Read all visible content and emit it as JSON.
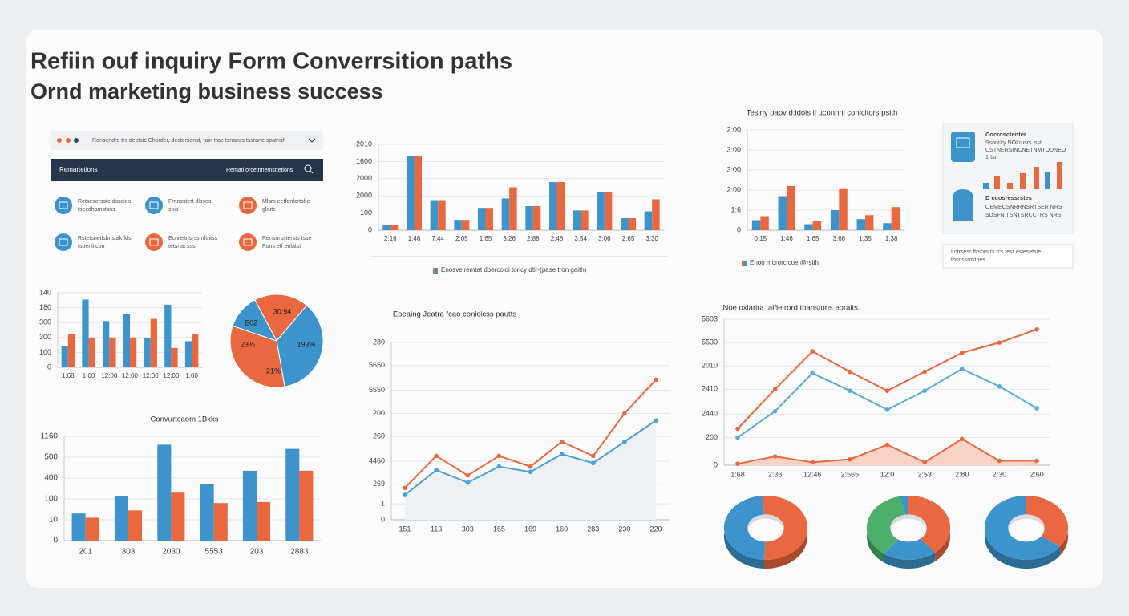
{
  "header": {
    "title": "Refiin ouf inquiry Form Converrsition paths",
    "subtitle": "Ornd marketing business success"
  },
  "panel": {
    "address": "Rensendre trs dectsic Chorder, dectersonid, tain trae tsnanss tssrane spatnsh",
    "nav_title": "Remartetions",
    "nav_search": "Rematl orcetnnemsttetions",
    "items": [
      [
        "Retsesersste dsscies",
        "tsecdhamstsns"
      ],
      [
        "Frnnsstert dlsses",
        "snis"
      ],
      [
        "Mlsrs eetfonfortshe",
        "gkute"
      ],
      [
        "Rstetsnetlsbnstak fds",
        "tsoeniticon"
      ],
      [
        "Ecnreitnsrssmftntss",
        "tetsnat sss"
      ],
      [
        "Rensnrsstersts tsse",
        "Pons etf enlatst"
      ]
    ]
  },
  "card": {
    "title": "Cocrosctenter",
    "lines": [
      "Ssonrlry NOI rusrs lsst",
      "CSTNERSINCNETNMTODNEO",
      "1rtsn"
    ],
    "title2": "D ccosressrstes",
    "lines2": [
      "OEMECSNRRNSRTSER NRS",
      "SDSFN TSNTSRCCTRS NRS"
    ],
    "note": [
      "Lotrsesr ftrsorsfrs tcs fesr esiesetsie",
      "tosnssmstnes"
    ]
  },
  "chart_data": [
    {
      "type": "bar",
      "categories": [
        "2:16",
        "1:46",
        "7:44",
        "2:05",
        "1:65",
        "3:26",
        "2:88",
        "2:48",
        "3:54",
        "3:06",
        "2:65",
        "3:30"
      ],
      "series": [
        {
          "color": "#3d94cc",
          "values": [
            6,
            86,
            35,
            12,
            26,
            37,
            28,
            56,
            23,
            44,
            14,
            22
          ]
        },
        {
          "color": "#e9683f",
          "values": [
            6,
            86,
            35,
            12,
            26,
            50,
            28,
            56,
            23,
            44,
            14,
            36
          ]
        }
      ],
      "ylim": [
        0,
        100
      ],
      "yticks": [
        0,
        {
          "value": 20,
          "label": "100"
        },
        {
          "value": 40,
          "label": "2000"
        },
        {
          "value": 60,
          "label": "2000"
        },
        {
          "value": 80,
          "label": "1600"
        },
        {
          "value": 100,
          "label": "2010"
        }
      ],
      "grid": true,
      "legend": "Enosvelremtat doercoidi toricy dtir-(pase tron gaith)"
    },
    {
      "type": "bar",
      "title": "Tesiriy paov d:idois il uconnni conicitors psith",
      "categories": [
        "0:15",
        "1:46",
        "1:65",
        "3:66",
        "1:35",
        "1:38"
      ],
      "series": [
        {
          "color": "#3d94cc",
          "values": [
            10,
            34,
            6,
            20,
            11,
            7
          ]
        },
        {
          "color": "#e9683f",
          "values": [
            14,
            44,
            9,
            41,
            15,
            23
          ]
        }
      ],
      "ylim": [
        0,
        100
      ],
      "yticks": [
        0,
        {
          "value": 20,
          "label": "1:6"
        },
        {
          "value": 40,
          "label": "2:00"
        },
        {
          "value": 60,
          "label": "3:00"
        },
        {
          "value": 80,
          "label": "3:00"
        },
        {
          "value": 100,
          "label": "2:00"
        }
      ],
      "grid": true,
      "legend": "Enoo mororcicoe @rstih"
    },
    {
      "type": "bar",
      "categories": [
        "1:68",
        "1:00",
        "12:00",
        "12:00",
        "12:00",
        "12:00",
        "1:00"
      ],
      "series": [
        {
          "color": "#3d94cc",
          "values": [
            28,
            91,
            62,
            71,
            39,
            84,
            35
          ]
        },
        {
          "color": "#e9683f",
          "values": [
            44,
            40,
            40,
            40,
            65,
            26,
            45
          ]
        }
      ],
      "ylim": [
        0,
        100
      ],
      "yticks": [
        0,
        {
          "value": 20,
          "label": "100"
        },
        {
          "value": 40,
          "label": "300"
        },
        {
          "value": 60,
          "label": "300"
        },
        {
          "value": 80,
          "label": "180"
        },
        {
          "value": 100,
          "label": "140"
        }
      ],
      "grid": true
    },
    {
      "type": "pie",
      "values": [
        19,
        36,
        33,
        12
      ],
      "colors": [
        "#e9683f",
        "#3d94cc",
        "#e9683f",
        "#3d94cc"
      ],
      "annotations": [
        "30:94",
        "E02",
        "193%",
        "23%",
        "21%"
      ]
    },
    {
      "type": "bar",
      "title": "Convurtcaom 1Bkks",
      "categories": [
        "201",
        "303",
        "2030",
        "5553",
        "203",
        "2883"
      ],
      "series": [
        {
          "color": "#3d94cc",
          "values": [
            26,
            43,
            92,
            54,
            67,
            88
          ]
        },
        {
          "color": "#e9683f",
          "values": [
            22,
            29,
            46,
            36,
            37,
            67
          ]
        }
      ],
      "ylim": [
        0,
        100
      ],
      "yticks": [
        0,
        {
          "value": 20,
          "label": "10"
        },
        {
          "value": 40,
          "label": "100"
        },
        {
          "value": 60,
          "label": "400"
        },
        {
          "value": 80,
          "label": "500"
        },
        {
          "value": 100,
          "label": "1160"
        }
      ],
      "grid": true
    },
    {
      "type": "line",
      "title": "Eoeaing Jeatra fcao conicicss pautts",
      "categories": [
        "151",
        "113",
        "303",
        "165",
        "169",
        "160",
        "283",
        "230",
        "220"
      ],
      "series": [
        {
          "color": "#4aa0d5",
          "area": "#eef1f4",
          "values": [
            14,
            28,
            21,
            30,
            27,
            37,
            32,
            44,
            56
          ]
        },
        {
          "color": "#e9683f",
          "values": [
            18,
            36,
            25,
            36,
            30,
            44,
            36,
            60,
            79
          ]
        }
      ],
      "ylim": [
        0,
        100
      ],
      "yticks": [
        0,
        {
          "value": 9,
          "label": "1"
        },
        {
          "value": 20,
          "label": "269"
        },
        {
          "value": 33,
          "label": "4460"
        },
        {
          "value": 47,
          "label": "260"
        },
        {
          "value": 60,
          "label": "200"
        },
        {
          "value": 73,
          "label": "5550"
        },
        {
          "value": 87,
          "label": "5650"
        },
        {
          "value": 100,
          "label": "280"
        }
      ],
      "grid": true
    },
    {
      "type": "line",
      "title": "Noe oxiarira taifle rord tbanstons eoraits.",
      "categories": [
        "1:68",
        "2:36",
        "12:46",
        "2:565",
        "12:0",
        "2:53",
        "2:80",
        "2:30",
        "2:60"
      ],
      "series": [
        {
          "color": "#e9683f",
          "area": "#f9d3c6",
          "values": [
            1,
            6,
            2,
            4,
            14,
            2,
            18,
            3,
            3
          ]
        },
        {
          "color": "#5aaad6",
          "values": [
            19,
            37,
            63,
            51,
            38,
            51,
            66,
            54,
            39
          ]
        },
        {
          "color": "#e9683f",
          "values": [
            25,
            52,
            78,
            64,
            51,
            64,
            77,
            84,
            93
          ]
        }
      ],
      "ylim": [
        0,
        100
      ],
      "yticks": [
        0,
        {
          "value": 19,
          "label": "200"
        },
        {
          "value": 35,
          "label": "2440"
        },
        {
          "value": 52,
          "label": "2410"
        },
        {
          "value": 68,
          "label": "2010"
        },
        {
          "value": 84,
          "label": "5530"
        },
        {
          "value": 100,
          "label": "5603"
        }
      ],
      "grid": true
    },
    {
      "type": "donut",
      "values": [
        52,
        48
      ],
      "colors": [
        "#e9683f",
        "#3d94cc"
      ]
    },
    {
      "type": "donut",
      "values": [
        39,
        21,
        37,
        3
      ],
      "colors": [
        "#e9683f",
        "#3d94cc",
        "#4caf6a",
        "#3d94cc"
      ]
    },
    {
      "type": "donut",
      "values": [
        35,
        65
      ],
      "colors": [
        "#e9683f",
        "#3d94cc"
      ]
    }
  ]
}
